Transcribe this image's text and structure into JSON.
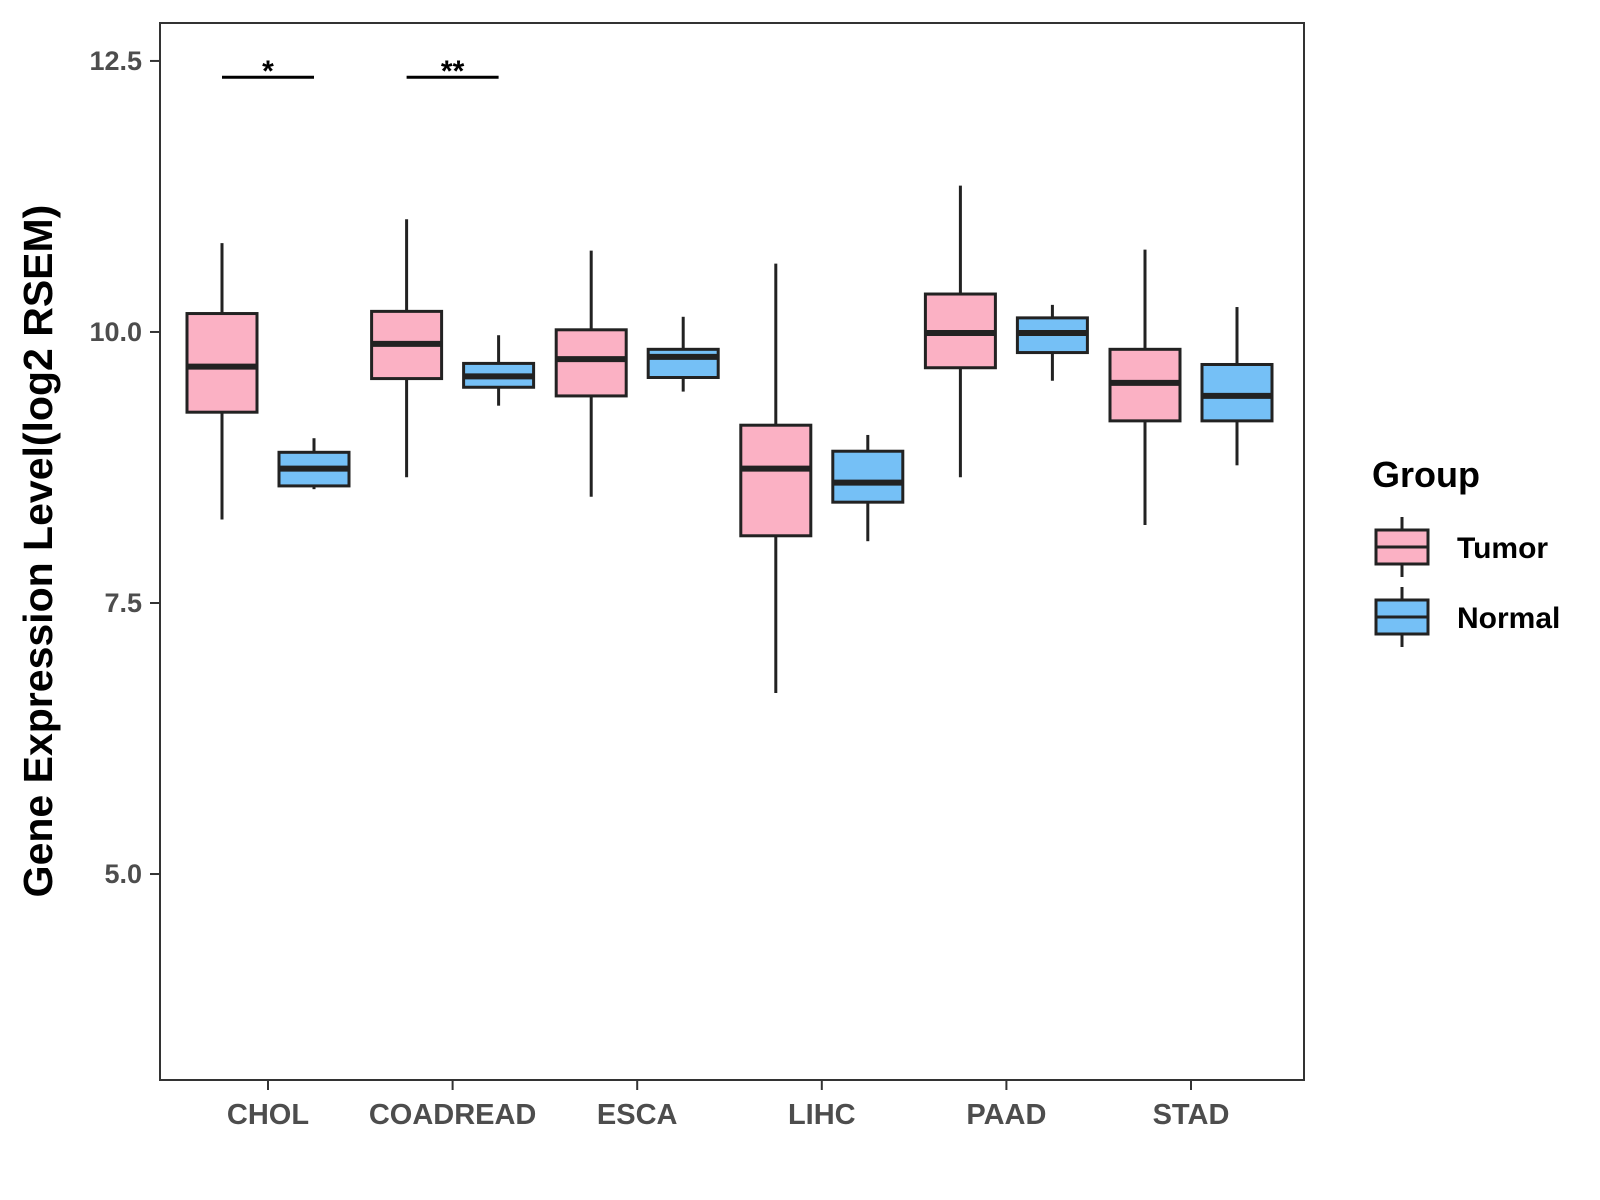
{
  "chart_data": {
    "type": "boxplot",
    "ylabel": "Gene Expression Level(log2 RSEM)",
    "xlabel": "",
    "ylim": [
      3.1,
      12.85
    ],
    "yticks": [
      "5.0",
      "7.5",
      "10.0",
      "12.5"
    ],
    "ytick_values": [
      5.0,
      7.5,
      10.0,
      12.5
    ],
    "categories": [
      "CHOL",
      "COADREAD",
      "ESCA",
      "LIHC",
      "PAAD",
      "STAD"
    ],
    "legend": {
      "title": "Group",
      "position": "right",
      "entries": [
        {
          "label": "Tumor",
          "color": "#fbb1c4"
        },
        {
          "label": "Normal",
          "color": "#75c0f6"
        }
      ]
    },
    "series": [
      {
        "name": "Tumor",
        "color": "#fbb1c4",
        "boxes": [
          {
            "category": "CHOL",
            "min": 8.27,
            "q1": 9.26,
            "median": 9.68,
            "q3": 10.17,
            "max": 10.82
          },
          {
            "category": "COADREAD",
            "min": 8.66,
            "q1": 9.57,
            "median": 9.89,
            "q3": 10.19,
            "max": 11.04
          },
          {
            "category": "ESCA",
            "min": 8.48,
            "q1": 9.41,
            "median": 9.75,
            "q3": 10.02,
            "max": 10.75
          },
          {
            "category": "LIHC",
            "min": 6.67,
            "q1": 8.12,
            "median": 8.74,
            "q3": 9.14,
            "max": 10.63
          },
          {
            "category": "PAAD",
            "min": 8.66,
            "q1": 9.67,
            "median": 9.99,
            "q3": 10.35,
            "max": 11.35
          },
          {
            "category": "STAD",
            "min": 8.22,
            "q1": 9.18,
            "median": 9.53,
            "q3": 9.84,
            "max": 10.76
          }
        ]
      },
      {
        "name": "Normal",
        "color": "#75c0f6",
        "boxes": [
          {
            "category": "CHOL",
            "min": 8.55,
            "q1": 8.58,
            "median": 8.74,
            "q3": 8.89,
            "max": 9.02
          },
          {
            "category": "COADREAD",
            "min": 9.32,
            "q1": 9.49,
            "median": 9.59,
            "q3": 9.71,
            "max": 9.97
          },
          {
            "category": "ESCA",
            "min": 9.45,
            "q1": 9.58,
            "median": 9.77,
            "q3": 9.84,
            "max": 10.14
          },
          {
            "category": "LIHC",
            "min": 8.07,
            "q1": 8.43,
            "median": 8.61,
            "q3": 8.9,
            "max": 9.05
          },
          {
            "category": "PAAD",
            "min": 9.55,
            "q1": 9.81,
            "median": 9.99,
            "q3": 10.13,
            "max": 10.25
          },
          {
            "category": "STAD",
            "min": 8.77,
            "q1": 9.18,
            "median": 9.41,
            "q3": 9.7,
            "max": 10.23
          }
        ]
      }
    ],
    "significance": [
      {
        "category": "CHOL",
        "label": "*",
        "y": 12.35
      },
      {
        "category": "COADREAD",
        "label": "**",
        "y": 12.35
      }
    ]
  }
}
